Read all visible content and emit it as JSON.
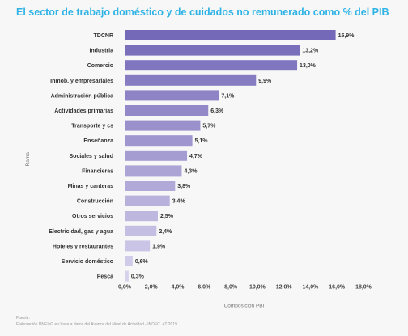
{
  "title": "El sector de trabajo doméstico y de cuidados no remunerado como % del PIB",
  "chart_data": {
    "type": "bar",
    "orientation": "horizontal",
    "categories": [
      "TDCNR",
      "Industria",
      "Comercio",
      "Inmob. y empresariales",
      "Administración pública",
      "Actividades primarias",
      "Transporte y cs",
      "Enseñanza",
      "Sociales y salud",
      "Financieras",
      "Minas y canteras",
      "Construcción",
      "Otros servicios",
      "Electricidad, gas y agua",
      "Hoteles y restaurantes",
      "Servicio doméstico",
      "Pesca"
    ],
    "values": [
      15.9,
      13.2,
      13.0,
      9.9,
      7.1,
      6.3,
      5.7,
      5.1,
      4.7,
      4.3,
      3.8,
      3.4,
      2.5,
      2.4,
      1.9,
      0.6,
      0.3
    ],
    "value_labels": [
      "15,9%",
      "13,2%",
      "13,0%",
      "9,9%",
      "7,1%",
      "6,3%",
      "5,7%",
      "5,1%",
      "4,7%",
      "4,3%",
      "3,8%",
      "3,4%",
      "2,5%",
      "2,4%",
      "1,9%",
      "0,6%",
      "0,3%"
    ],
    "xticks": [
      "0,0%",
      "2,0%",
      "4,0%",
      "6,0%",
      "8,0%",
      "10,0%",
      "12,0%",
      "14,0%",
      "16,0%",
      "18,0%"
    ],
    "xlim": [
      0,
      18
    ],
    "xlabel": "Composición PBI",
    "ylabel": "Rama",
    "colors": {
      "top": "#7468b8",
      "bottom": "#d6d2ec"
    },
    "grid": false,
    "legend": false
  },
  "source": {
    "label": "Fuente:",
    "text": "Elaboración DNEIyG en base a datos del Avance del Nivel de Actividad - INDEC. 4T 2019."
  }
}
